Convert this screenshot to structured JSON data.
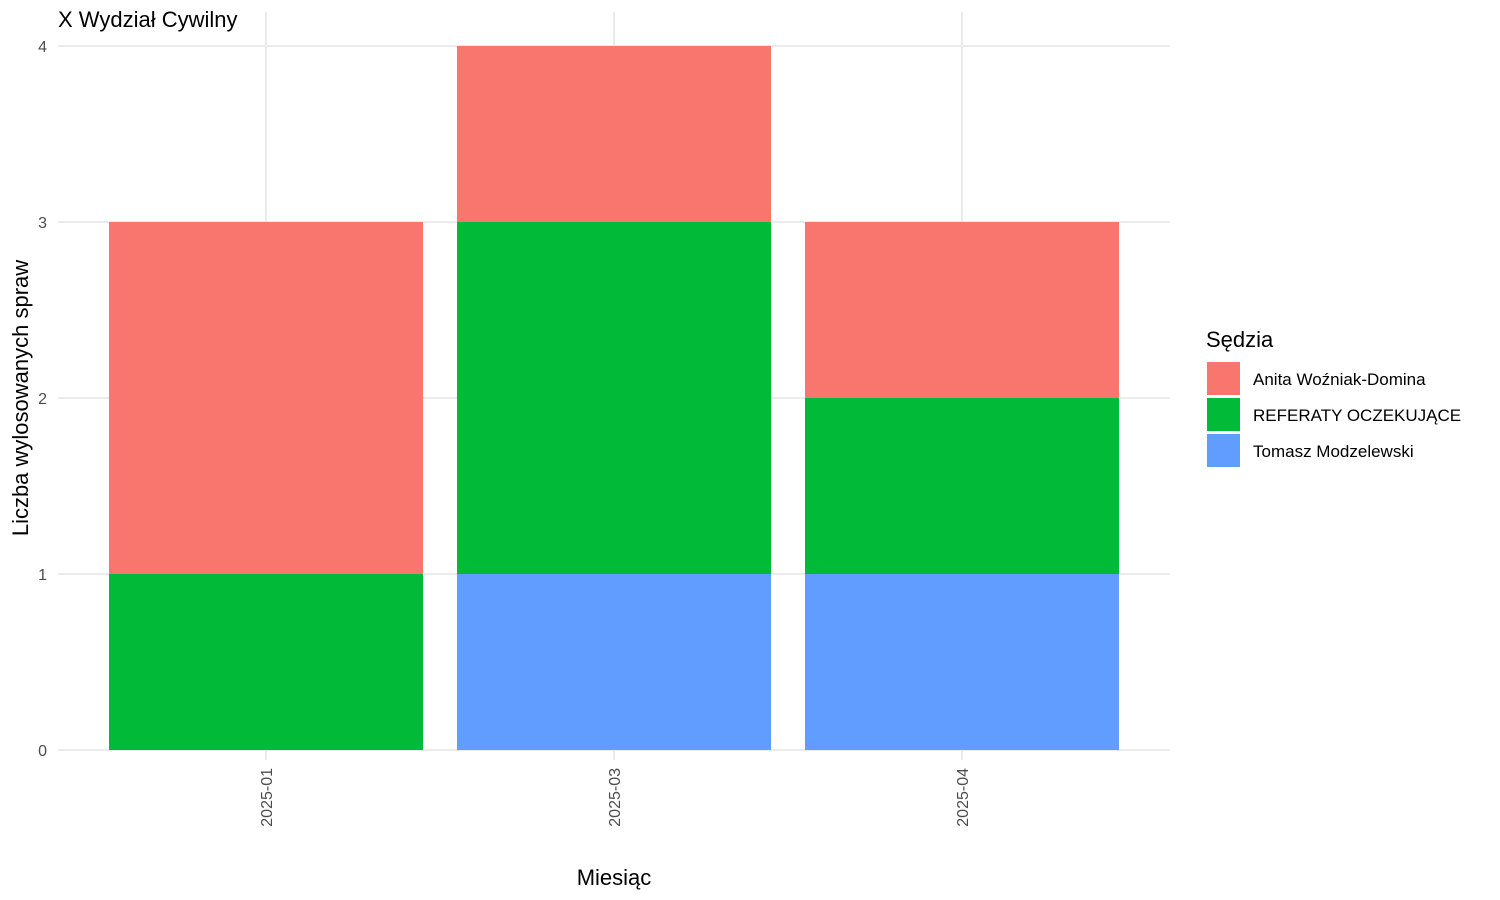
{
  "chart_data": {
    "type": "bar",
    "stacked": true,
    "title": "X Wydział Cywilny",
    "xlabel": "Miesiąc",
    "ylabel": "Liczba wylosowanych spraw",
    "categories": [
      "2025-01",
      "2025-03",
      "2025-04"
    ],
    "series": [
      {
        "name": "Tomasz Modzelewski",
        "color": "#619CFF",
        "values": [
          0,
          1,
          1
        ]
      },
      {
        "name": "REFERATY OCZEKUJĄCE",
        "color": "#00BA38",
        "values": [
          1,
          2,
          1
        ]
      },
      {
        "name": "Anita Woźniak-Domina",
        "color": "#F8766D",
        "values": [
          2,
          1,
          1
        ]
      }
    ],
    "ylim": [
      0,
      4
    ],
    "yticks": [
      0,
      1,
      2,
      3,
      4
    ],
    "grid": true,
    "legend": {
      "title": "Sędzia",
      "placement": "right",
      "entries": [
        "Anita Woźniak-Domina",
        "REFERATY OCZEKUJĄCE",
        "Tomasz Modzelewski"
      ]
    }
  }
}
